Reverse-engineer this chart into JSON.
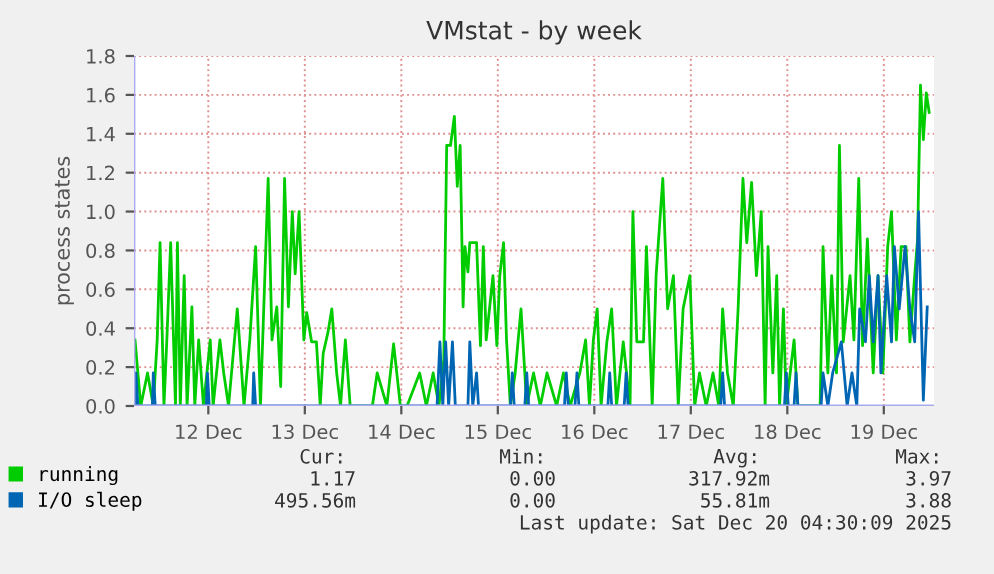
{
  "chart_data": {
    "type": "line",
    "title": "VMstat - by week",
    "ylabel": "process states",
    "xlim": [
      "2025-12-11T05:31",
      "2025-12-19T12:29"
    ],
    "xticks": [
      {
        "value": "2025-12-12",
        "label": "12 Dec"
      },
      {
        "value": "2025-12-13",
        "label": "13 Dec"
      },
      {
        "value": "2025-12-14",
        "label": "14 Dec"
      },
      {
        "value": "2025-12-15",
        "label": "15 Dec"
      },
      {
        "value": "2025-12-16",
        "label": "16 Dec"
      },
      {
        "value": "2025-12-17",
        "label": "17 Dec"
      },
      {
        "value": "2025-12-18",
        "label": "18 Dec"
      },
      {
        "value": "2025-12-19",
        "label": "19 Dec"
      }
    ],
    "ylim": [
      0,
      1.8
    ],
    "yticks": [
      {
        "value": 0,
        "label": "0.0"
      },
      {
        "value": 0.2,
        "label": "0.2"
      },
      {
        "value": 0.4,
        "label": "0.4"
      },
      {
        "value": 0.6,
        "label": "0.6"
      },
      {
        "value": 0.8,
        "label": "0.8"
      },
      {
        "value": 1.0,
        "label": "1.0"
      },
      {
        "value": 1.2,
        "label": "1.2"
      },
      {
        "value": 1.4,
        "label": "1.4"
      },
      {
        "value": 1.6,
        "label": "1.6"
      },
      {
        "value": 1.8,
        "label": "1.8"
      }
    ],
    "grid": true,
    "legend": "bottom",
    "line_style": "solid",
    "marker": "none",
    "series": [
      {
        "name": "running",
        "color": "#00cc00",
        "x": [
          "2025-12-11T05:46",
          "2025-12-11T07:12",
          "2025-12-11T08:53",
          "2025-12-11T10:19",
          "2025-12-11T11:17",
          "2025-12-11T12:00",
          "2025-12-11T12:58",
          "2025-12-11T13:41",
          "2025-12-11T14:38",
          "2025-12-11T15:50",
          "2025-12-11T16:19",
          "2025-12-11T17:02",
          "2025-12-11T18:00",
          "2025-12-11T18:43",
          "2025-12-11T19:55",
          "2025-12-11T20:38",
          "2025-12-11T21:36",
          "2025-12-11T22:48",
          "2025-12-12T00:29",
          "2025-12-12T01:12",
          "2025-12-12T02:53",
          "2025-12-12T03:50",
          "2025-12-12T05:02",
          "2025-12-12T07:12",
          "2025-12-12T08:53",
          "2025-12-12T10:19",
          "2025-12-12T11:46",
          "2025-12-12T12:58",
          "2025-12-12T14:53",
          "2025-12-12T15:50",
          "2025-12-12T17:02",
          "2025-12-12T18:00",
          "2025-12-12T18:58",
          "2025-12-12T19:55",
          "2025-12-12T20:53",
          "2025-12-12T21:36",
          "2025-12-12T22:34",
          "2025-12-12T23:46",
          "2025-12-13T00:29",
          "2025-12-13T01:41",
          "2025-12-13T02:53",
          "2025-12-13T03:50",
          "2025-12-13T04:34",
          "2025-12-13T05:46",
          "2025-12-13T06:43",
          "2025-12-13T07:55",
          "2025-12-13T08:53",
          "2025-12-13T10:05",
          "2025-12-13T11:17",
          "2025-12-13T16:48",
          "2025-12-13T18:00",
          "2025-12-13T20:24",
          "2025-12-13T22:05",
          "2025-12-13T23:46",
          "2025-12-14T01:26",
          "2025-12-14T04:34",
          "2025-12-14T06:14",
          "2025-12-14T07:55",
          "2025-12-14T09:22",
          "2025-12-14T10:34",
          "2025-12-14T11:17",
          "2025-12-14T12:14",
          "2025-12-14T13:12",
          "2025-12-14T13:55",
          "2025-12-14T14:38",
          "2025-12-14T15:22",
          "2025-12-14T15:50",
          "2025-12-14T16:34",
          "2025-12-14T17:02",
          "2025-12-14T18:43",
          "2025-12-14T19:41",
          "2025-12-14T20:24",
          "2025-12-14T21:07",
          "2025-12-14T22:48",
          "2025-12-14T23:46",
          "2025-12-15T00:29",
          "2025-12-15T01:26",
          "2025-12-15T02:10",
          "2025-12-15T03:07",
          "2025-12-15T04:19",
          "2025-12-15T05:46",
          "2025-12-15T07:12",
          "2025-12-15T08:53",
          "2025-12-15T10:34",
          "2025-12-15T12:14",
          "2025-12-15T14:38",
          "2025-12-15T16:19",
          "2025-12-15T18:00",
          "2025-12-15T20:24",
          "2025-12-15T21:50",
          "2025-12-15T22:48",
          "2025-12-15T23:46",
          "2025-12-16T00:43",
          "2025-12-16T01:41",
          "2025-12-16T03:07",
          "2025-12-16T04:19",
          "2025-12-16T05:31",
          "2025-12-16T07:12",
          "2025-12-16T08:53",
          "2025-12-16T09:36",
          "2025-12-16T10:34",
          "2025-12-16T12:14",
          "2025-12-16T12:58",
          "2025-12-16T14:24",
          "2025-12-16T15:22",
          "2025-12-16T17:02",
          "2025-12-16T18:14",
          "2025-12-16T19:41",
          "2025-12-16T20:53",
          "2025-12-16T22:05",
          "2025-12-16T23:46",
          "2025-12-17T00:58",
          "2025-12-17T02:10",
          "2025-12-17T03:50",
          "2025-12-17T05:31",
          "2025-12-17T06:58",
          "2025-12-17T07:55",
          "2025-12-17T09:07",
          "2025-12-17T10:34",
          "2025-12-17T11:46",
          "2025-12-17T12:58",
          "2025-12-17T13:55",
          "2025-12-17T15:07",
          "2025-12-17T16:19",
          "2025-12-17T17:31",
          "2025-12-17T18:29",
          "2025-12-17T19:12",
          "2025-12-17T20:24",
          "2025-12-17T21:22",
          "2025-12-17T22:05",
          "2025-12-17T23:02",
          "2025-12-17T23:46",
          "2025-12-18T01:41",
          "2025-12-18T02:38",
          "2025-12-18T08:10",
          "2025-12-18T08:53",
          "2025-12-18T10:05",
          "2025-12-18T11:02",
          "2025-12-18T12:14",
          "2025-12-18T12:58",
          "2025-12-18T13:55",
          "2025-12-18T15:36",
          "2025-12-18T16:34",
          "2025-12-18T17:46",
          "2025-12-18T18:43",
          "2025-12-18T19:55",
          "2025-12-18T21:22",
          "2025-12-18T22:34",
          "2025-12-18T23:46",
          "2025-12-19T00:58",
          "2025-12-19T01:55",
          "2025-12-19T03:07",
          "2025-12-19T04:19",
          "2025-12-19T05:31",
          "2025-12-19T06:29",
          "2025-12-19T07:41",
          "2025-12-19T08:24",
          "2025-12-19T09:07",
          "2025-12-19T09:50",
          "2025-12-19T10:34",
          "2025-12-19T11:17"
        ],
        "values": [
          0.34,
          0,
          0.17,
          0,
          0.34,
          0.84,
          0,
          0.34,
          0.84,
          0,
          0.84,
          0,
          0.67,
          0,
          0.51,
          0,
          0.34,
          0,
          0.34,
          0,
          0.34,
          0.17,
          0,
          0.5,
          0,
          0.34,
          0.82,
          0,
          1.17,
          0.34,
          0.51,
          0.1,
          1.17,
          0.51,
          1.0,
          0.68,
          1.0,
          0.34,
          0.48,
          0.33,
          0.33,
          0,
          0.27,
          0.38,
          0.5,
          0.17,
          0,
          0.34,
          0,
          0,
          0.17,
          0,
          0.32,
          0,
          0,
          0.17,
          0,
          0.17,
          0,
          0.24,
          1.34,
          1.34,
          1.49,
          1.13,
          1.34,
          0.51,
          0.82,
          0.69,
          0.84,
          0.84,
          0.31,
          0.82,
          0.34,
          0.67,
          0.31,
          0.67,
          0.84,
          0.34,
          0,
          0.17,
          0.5,
          0,
          0.17,
          0,
          0.17,
          0,
          0.17,
          0,
          0.17,
          0.34,
          0,
          0.34,
          0.5,
          0,
          0.33,
          0.5,
          0,
          0.33,
          0,
          1.0,
          0.33,
          0.33,
          0.82,
          0,
          0.67,
          1.17,
          0.5,
          0.67,
          0,
          0.5,
          0.67,
          0,
          0.17,
          0,
          0.17,
          0,
          0.5,
          0.17,
          0,
          0.5,
          1.17,
          0.84,
          1.15,
          0.67,
          1.0,
          0,
          0.82,
          0.17,
          0.67,
          0,
          0.5,
          0,
          0.34,
          0,
          0,
          0.82,
          0.17,
          0.67,
          0.17,
          1.34,
          0.33,
          0.67,
          0.34,
          1.17,
          0.31,
          0.86,
          0.17,
          0.67,
          0.17,
          0.82,
          1.0,
          0.34,
          0.82,
          0.82,
          0.33,
          0.67,
          0.86,
          1.65,
          1.37,
          1.61,
          1.51
        ]
      },
      {
        "name": "I/O sleep",
        "color": "#0066b3",
        "x": [
          "2025-12-11T05:46",
          "2025-12-11T06:00",
          "2025-12-11T06:29",
          "2025-12-11T10:05",
          "2025-12-11T10:19",
          "2025-12-11T10:48",
          "2025-12-11T23:31",
          "2025-12-11T23:46",
          "2025-12-12T00:14",
          "2025-12-12T11:02",
          "2025-12-12T11:17",
          "2025-12-12T11:46",
          "2025-12-14T08:53",
          "2025-12-14T09:36",
          "2025-12-14T10:19",
          "2025-12-14T11:02",
          "2025-12-14T11:46",
          "2025-12-14T12:43",
          "2025-12-14T13:26",
          "2025-12-14T16:34",
          "2025-12-14T17:02",
          "2025-12-14T17:46",
          "2025-12-14T18:43",
          "2025-12-14T19:12",
          "2025-12-15T03:07",
          "2025-12-15T03:36",
          "2025-12-15T04:05",
          "2025-12-15T06:43",
          "2025-12-15T07:12",
          "2025-12-15T07:41",
          "2025-12-15T16:34",
          "2025-12-15T17:02",
          "2025-12-15T17:31",
          "2025-12-15T19:12",
          "2025-12-15T19:41",
          "2025-12-15T20:10",
          "2025-12-16T03:22",
          "2025-12-16T03:50",
          "2025-12-16T04:19",
          "2025-12-16T07:26",
          "2025-12-16T07:55",
          "2025-12-16T08:24",
          "2025-12-17T07:26",
          "2025-12-17T07:55",
          "2025-12-17T08:24",
          "2025-12-17T23:17",
          "2025-12-17T23:46",
          "2025-12-18T00:14",
          "2025-12-18T01:41",
          "2025-12-18T02:10",
          "2025-12-18T02:38",
          "2025-12-18T08:24",
          "2025-12-18T08:53",
          "2025-12-18T10:05",
          "2025-12-18T11:17",
          "2025-12-18T13:26",
          "2025-12-18T14:53",
          "2025-12-18T16:05",
          "2025-12-18T17:17",
          "2025-12-18T18:00",
          "2025-12-18T19:26",
          "2025-12-18T20:24",
          "2025-12-18T21:22",
          "2025-12-18T22:34",
          "2025-12-18T23:17",
          "2025-12-19T00:43",
          "2025-12-19T01:55",
          "2025-12-19T02:38",
          "2025-12-19T03:50",
          "2025-12-19T05:17",
          "2025-12-19T06:29",
          "2025-12-19T07:41",
          "2025-12-19T08:38",
          "2025-12-19T09:50",
          "2025-12-19T10:48"
        ],
        "values": [
          0,
          0.17,
          0,
          0,
          0.17,
          0,
          0,
          0.17,
          0,
          0,
          0.17,
          0,
          0,
          0.33,
          0,
          0.33,
          0,
          0.33,
          0,
          0,
          0.33,
          0,
          0.17,
          0,
          0,
          0.17,
          0,
          0,
          0.17,
          0,
          0,
          0.17,
          0,
          0,
          0.17,
          0,
          0,
          0.17,
          0,
          0,
          0.17,
          0,
          0,
          0.17,
          0,
          0,
          0.17,
          0,
          0,
          0.17,
          0,
          0,
          0.17,
          0,
          0.17,
          0.33,
          0,
          0.17,
          0,
          0.5,
          0.33,
          0.67,
          0.33,
          0.67,
          0.17,
          0.67,
          0.33,
          0.82,
          0.5,
          0.82,
          0.5,
          0.33,
          1.0,
          0.03,
          0.51
        ]
      }
    ],
    "annotations": [
      "Cur:",
      "Min:",
      "Avg:",
      "Max:",
      "1.17",
      "0.00",
      "317.92m",
      "3.97",
      "495.56m",
      "0.00",
      "55.81m",
      "3.88",
      "Last update: Sat Dec 20 04:30:09 2025"
    ]
  }
}
